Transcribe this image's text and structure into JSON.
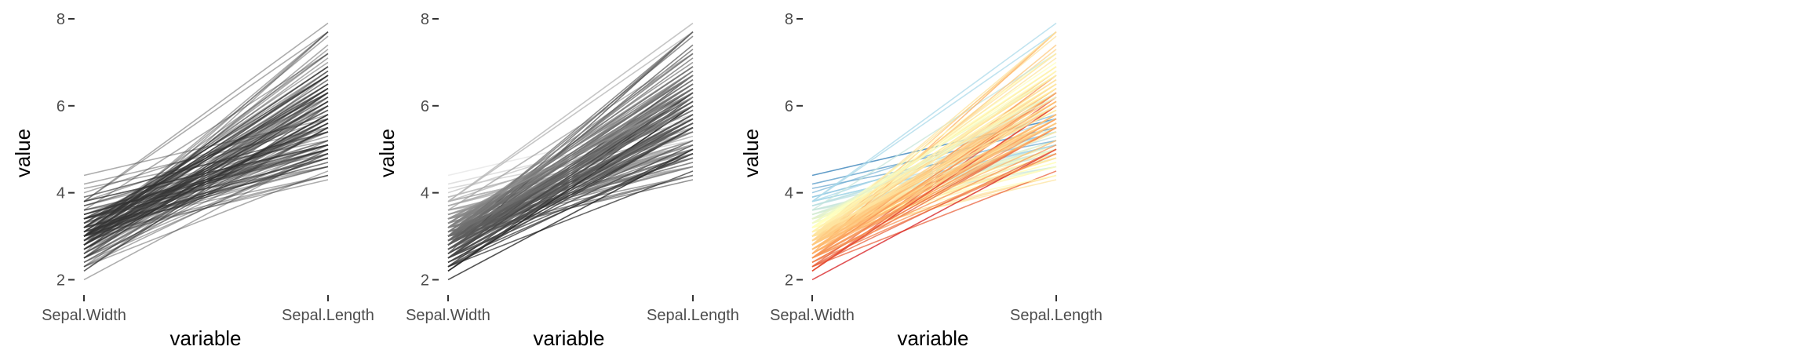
{
  "chart_data": [
    {
      "type": "line",
      "xlabel": "variable",
      "ylabel": "value",
      "categories": [
        "Sepal.Width",
        "Sepal.Length"
      ],
      "ylim": [
        1.9,
        8.0
      ],
      "yticks": [
        2,
        4,
        6,
        8
      ],
      "grid": false,
      "legend": "none",
      "colors": [
        "#333333"
      ],
      "series_note_values": "one line per observation: [Sepal.Width, Sepal.Length]"
    },
    {
      "type": "line",
      "xlabel": "variable",
      "ylabel": "value",
      "categories": [
        "Sepal.Width",
        "Sepal.Length"
      ],
      "ylim": [
        1.9,
        8.0
      ],
      "yticks": [
        2,
        4,
        6,
        8
      ],
      "grid": false,
      "legend": "none",
      "colors": [
        "#1a1a1a",
        "#e6e6e6"
      ]
    },
    {
      "type": "line",
      "xlabel": "variable",
      "ylabel": "value",
      "categories": [
        "Sepal.Width",
        "Sepal.Length"
      ],
      "ylim": [
        1.9,
        8.0
      ],
      "yticks": [
        2,
        4,
        6,
        8
      ],
      "grid": false,
      "legend": "none",
      "colors": [
        "#2c7bb6",
        "#abd9e9",
        "#ffffbf",
        "#fdae61",
        "#d7191c"
      ]
    }
  ],
  "observations": [
    [
      3.5,
      5.1
    ],
    [
      3.0,
      4.9
    ],
    [
      3.2,
      4.7
    ],
    [
      3.1,
      4.6
    ],
    [
      3.6,
      5.0
    ],
    [
      3.9,
      5.4
    ],
    [
      3.4,
      4.6
    ],
    [
      3.4,
      5.0
    ],
    [
      2.9,
      4.4
    ],
    [
      3.1,
      4.9
    ],
    [
      3.7,
      5.4
    ],
    [
      3.4,
      4.8
    ],
    [
      3.0,
      4.8
    ],
    [
      3.0,
      4.3
    ],
    [
      4.0,
      5.8
    ],
    [
      4.4,
      5.7
    ],
    [
      3.9,
      5.4
    ],
    [
      3.5,
      5.1
    ],
    [
      3.8,
      5.7
    ],
    [
      3.8,
      5.1
    ],
    [
      3.4,
      5.4
    ],
    [
      3.7,
      5.1
    ],
    [
      3.6,
      4.6
    ],
    [
      3.3,
      5.1
    ],
    [
      3.4,
      4.8
    ],
    [
      3.0,
      5.0
    ],
    [
      3.4,
      5.0
    ],
    [
      3.5,
      5.2
    ],
    [
      3.4,
      5.2
    ],
    [
      3.2,
      4.7
    ],
    [
      3.1,
      4.8
    ],
    [
      3.4,
      5.4
    ],
    [
      4.1,
      5.2
    ],
    [
      4.2,
      5.5
    ],
    [
      3.1,
      4.9
    ],
    [
      3.2,
      5.0
    ],
    [
      3.5,
      5.5
    ],
    [
      3.6,
      4.9
    ],
    [
      3.0,
      4.4
    ],
    [
      3.4,
      5.1
    ],
    [
      3.5,
      5.0
    ],
    [
      2.3,
      4.5
    ],
    [
      3.2,
      4.4
    ],
    [
      3.5,
      5.0
    ],
    [
      3.8,
      5.1
    ],
    [
      3.0,
      4.8
    ],
    [
      3.8,
      5.1
    ],
    [
      3.2,
      4.6
    ],
    [
      3.7,
      5.3
    ],
    [
      3.3,
      5.0
    ],
    [
      3.2,
      7.0
    ],
    [
      3.2,
      6.4
    ],
    [
      3.1,
      6.9
    ],
    [
      2.3,
      5.5
    ],
    [
      2.8,
      6.5
    ],
    [
      2.8,
      5.7
    ],
    [
      3.3,
      6.3
    ],
    [
      2.4,
      4.9
    ],
    [
      2.9,
      6.6
    ],
    [
      2.7,
      5.2
    ],
    [
      2.0,
      5.0
    ],
    [
      3.0,
      5.9
    ],
    [
      2.2,
      6.0
    ],
    [
      2.9,
      6.1
    ],
    [
      2.9,
      5.6
    ],
    [
      3.1,
      6.7
    ],
    [
      3.0,
      5.6
    ],
    [
      2.7,
      5.8
    ],
    [
      2.2,
      6.2
    ],
    [
      2.5,
      5.6
    ],
    [
      3.2,
      5.9
    ],
    [
      2.8,
      6.1
    ],
    [
      2.5,
      6.3
    ],
    [
      2.8,
      6.1
    ],
    [
      2.9,
      6.4
    ],
    [
      3.0,
      6.6
    ],
    [
      2.8,
      6.8
    ],
    [
      3.0,
      6.7
    ],
    [
      2.9,
      6.0
    ],
    [
      2.6,
      5.7
    ],
    [
      2.4,
      5.5
    ],
    [
      2.4,
      5.5
    ],
    [
      2.7,
      5.8
    ],
    [
      2.7,
      6.0
    ],
    [
      3.0,
      5.4
    ],
    [
      3.4,
      6.0
    ],
    [
      3.1,
      6.7
    ],
    [
      2.3,
      6.3
    ],
    [
      3.0,
      5.6
    ],
    [
      2.5,
      5.5
    ],
    [
      2.6,
      5.5
    ],
    [
      3.0,
      6.1
    ],
    [
      2.6,
      5.8
    ],
    [
      2.3,
      5.0
    ],
    [
      2.7,
      5.6
    ],
    [
      3.0,
      5.7
    ],
    [
      2.9,
      5.7
    ],
    [
      2.9,
      6.2
    ],
    [
      2.5,
      5.1
    ],
    [
      2.8,
      5.7
    ],
    [
      3.3,
      6.3
    ],
    [
      2.7,
      5.8
    ],
    [
      3.0,
      7.1
    ],
    [
      2.9,
      6.3
    ],
    [
      3.0,
      6.5
    ],
    [
      3.0,
      7.6
    ],
    [
      2.5,
      4.9
    ],
    [
      2.9,
      7.3
    ],
    [
      2.5,
      6.7
    ],
    [
      3.6,
      7.2
    ],
    [
      3.2,
      6.5
    ],
    [
      2.7,
      6.4
    ],
    [
      3.0,
      6.8
    ],
    [
      2.5,
      5.7
    ],
    [
      2.8,
      5.8
    ],
    [
      3.2,
      6.4
    ],
    [
      3.0,
      6.5
    ],
    [
      3.8,
      7.7
    ],
    [
      2.6,
      7.7
    ],
    [
      2.2,
      6.0
    ],
    [
      3.2,
      6.9
    ],
    [
      2.8,
      5.6
    ],
    [
      2.8,
      7.7
    ],
    [
      2.7,
      6.3
    ],
    [
      3.3,
      6.7
    ],
    [
      3.2,
      7.2
    ],
    [
      2.8,
      6.2
    ],
    [
      3.0,
      6.1
    ],
    [
      2.8,
      6.4
    ],
    [
      3.0,
      7.2
    ],
    [
      2.8,
      7.4
    ],
    [
      3.8,
      7.9
    ],
    [
      2.8,
      6.4
    ],
    [
      2.8,
      6.3
    ],
    [
      2.6,
      6.1
    ],
    [
      3.0,
      7.7
    ],
    [
      3.4,
      6.3
    ],
    [
      3.1,
      6.4
    ],
    [
      3.0,
      6.0
    ],
    [
      3.1,
      6.9
    ],
    [
      3.1,
      6.7
    ],
    [
      3.1,
      6.9
    ],
    [
      2.7,
      5.8
    ],
    [
      3.2,
      6.8
    ],
    [
      3.3,
      6.7
    ],
    [
      3.0,
      6.7
    ],
    [
      2.5,
      6.3
    ],
    [
      3.0,
      6.5
    ],
    [
      3.4,
      6.2
    ],
    [
      3.0,
      5.9
    ]
  ],
  "panels": [
    {
      "ylabel": "value",
      "xlabel": "variable",
      "ytick_labels": [
        "2",
        "4",
        "6",
        "8"
      ],
      "xtick_labels": [
        "Sepal.Width",
        "Sepal.Length"
      ]
    },
    {
      "ylabel": "value",
      "xlabel": "variable",
      "ytick_labels": [
        "2",
        "4",
        "6",
        "8"
      ],
      "xtick_labels": [
        "Sepal.Width",
        "Sepal.Length"
      ]
    },
    {
      "ylabel": "value",
      "xlabel": "variable",
      "ytick_labels": [
        "2",
        "4",
        "6",
        "8"
      ],
      "xtick_labels": [
        "Sepal.Width",
        "Sepal.Length"
      ]
    }
  ]
}
